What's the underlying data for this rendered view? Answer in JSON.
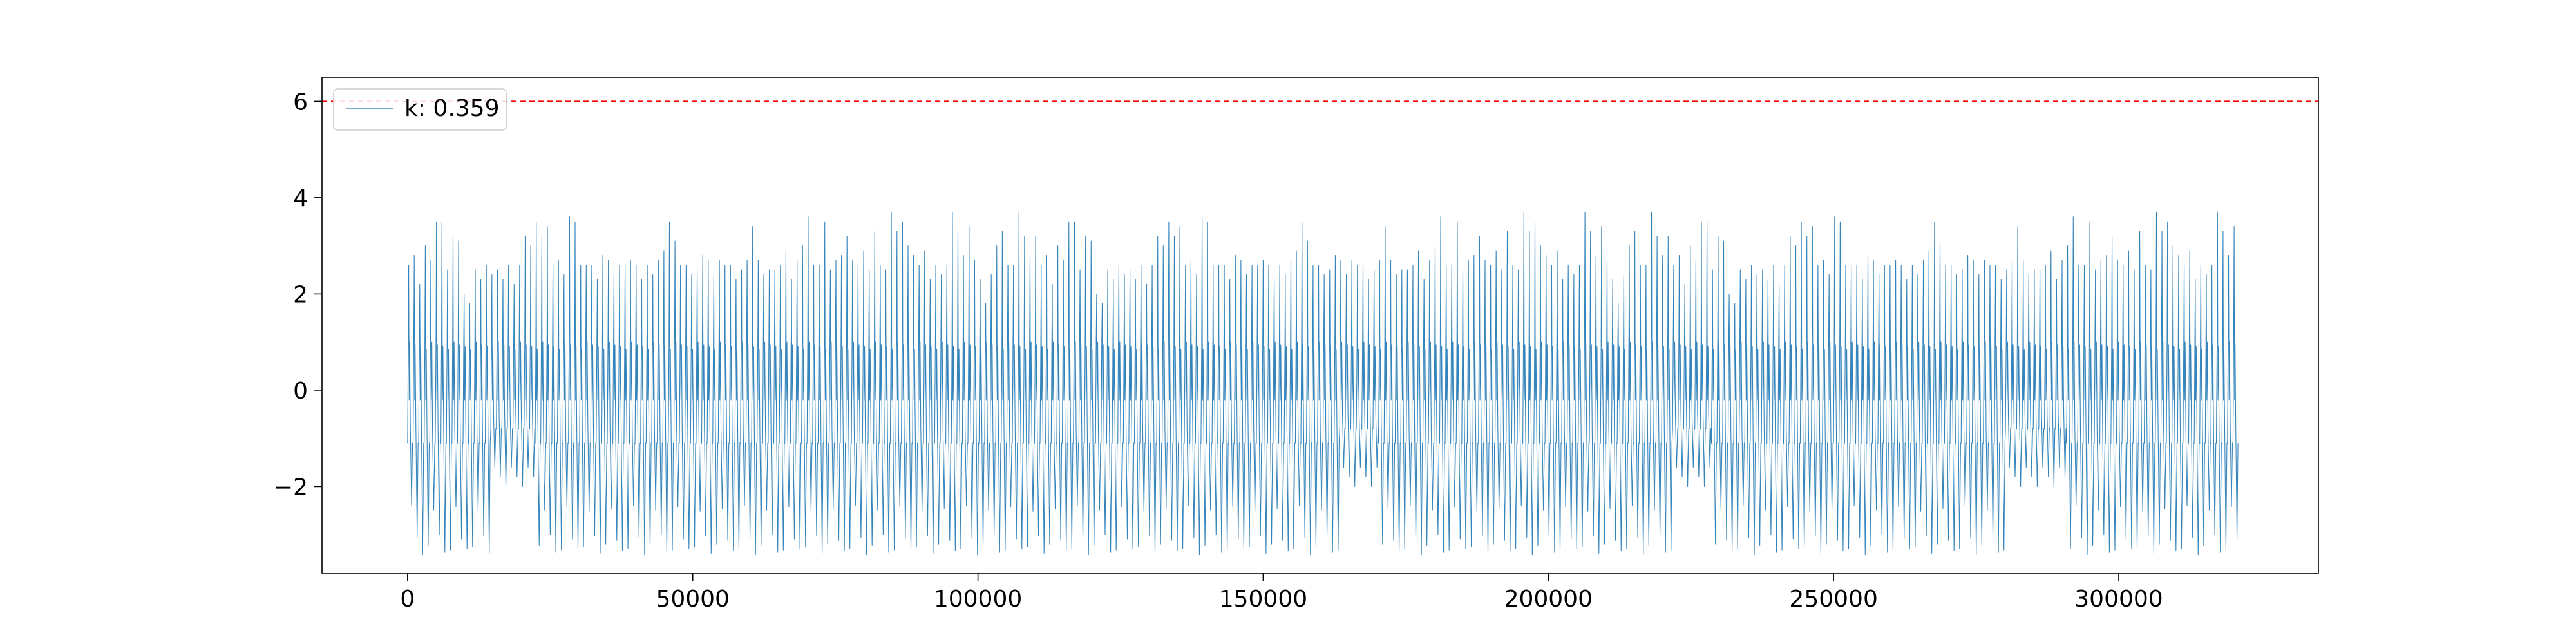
{
  "chart_data": {
    "type": "line",
    "title": "",
    "xlabel": "",
    "ylabel": "",
    "xlim": [
      -15000,
      335000
    ],
    "ylim": [
      -3.8,
      6.5
    ],
    "grid": false,
    "legend_position": "top-left",
    "x_ticks": [
      {
        "value": 0,
        "label": "0"
      },
      {
        "value": 50000,
        "label": "50000"
      },
      {
        "value": 100000,
        "label": "100000"
      },
      {
        "value": 150000,
        "label": "150000"
      },
      {
        "value": 200000,
        "label": "200000"
      },
      {
        "value": 250000,
        "label": "250000"
      },
      {
        "value": 300000,
        "label": "300000"
      }
    ],
    "y_ticks": [
      {
        "value": -2,
        "label": "−2"
      },
      {
        "value": 0,
        "label": "0"
      },
      {
        "value": 2,
        "label": "2"
      },
      {
        "value": 4,
        "label": "4"
      },
      {
        "value": 6,
        "label": "6"
      }
    ],
    "series": [
      {
        "name": "k: 0.359",
        "color": "#1f77b4",
        "x_range": [
          0,
          321000
        ],
        "cycles": 330,
        "cycle_low": -3.3,
        "cycle_high": 1.1,
        "peak_values": [
          2.6,
          2.8,
          2.2,
          3.0,
          2.7,
          3.5,
          3.5,
          2.5,
          3.2,
          3.1,
          2.0,
          1.8,
          2.5,
          2.3,
          2.6,
          2.4,
          2.5,
          2.3,
          2.6,
          2.2,
          2.6,
          3.2,
          3.0,
          3.5,
          3.2,
          3.4,
          2.6,
          2.7,
          2.4,
          3.6,
          3.5,
          2.6,
          2.6,
          2.6,
          2.3,
          2.8,
          2.7,
          2.4,
          2.6,
          2.6,
          2.7,
          2.6,
          2.3,
          2.6,
          2.4,
          2.7,
          2.9,
          3.5,
          3.1,
          2.6,
          2.6,
          2.4,
          2.5,
          2.8,
          2.7,
          2.4,
          2.7,
          2.6,
          2.6,
          2.3,
          2.5,
          2.7,
          3.4,
          2.7,
          2.4,
          2.5,
          2.5,
          2.6,
          2.9,
          2.3,
          2.7,
          3.0,
          3.6,
          2.6,
          2.6,
          3.5,
          2.5,
          2.7,
          2.8,
          3.2,
          2.7,
          2.6,
          2.9,
          2.5,
          3.3,
          2.6,
          2.5,
          3.7,
          3.3,
          3.5,
          3.0,
          2.8,
          2.6,
          2.9,
          2.3,
          2.6,
          2.4,
          2.6,
          3.7,
          3.3,
          2.8,
          3.4,
          2.7,
          2.3,
          1.8,
          2.4,
          3.0,
          3.3,
          2.6,
          2.6,
          3.7,
          3.2,
          2.8,
          3.2
        ],
        "peak_spacing": 2800,
        "trough_values": [
          -2.4,
          -3.0,
          -3.3,
          -3.2
        ],
        "dense_lower_regions": [
          [
            14000,
            22000
          ],
          [
            163000,
            170000
          ],
          [
            221000,
            228000
          ],
          [
            280000,
            290000
          ]
        ]
      }
    ],
    "reference_lines": [
      {
        "axis": "y",
        "value": 6,
        "color": "#ff0000",
        "style": "dashed"
      }
    ],
    "legend": {
      "entries": [
        {
          "label": "k: 0.359",
          "color": "#1f77b4"
        }
      ]
    }
  }
}
